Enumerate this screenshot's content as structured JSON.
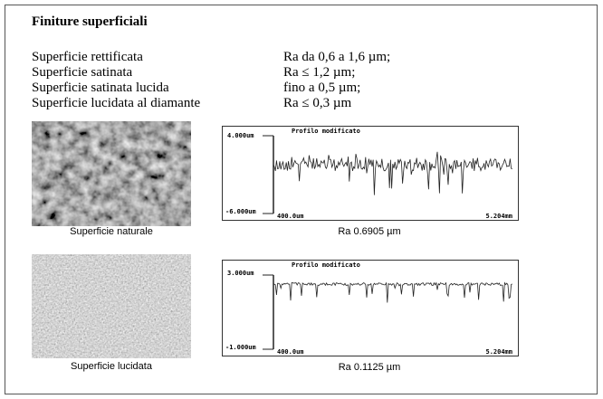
{
  "header": {
    "title": "Finiture superficiali"
  },
  "table": {
    "rows": [
      [
        "Superficie rettificata",
        "Ra da 0,6 a 1,6 µm;"
      ],
      [
        "Superficie satinata",
        "Ra ≤ 1,2 µm;"
      ],
      [
        "Superficie satinata lucida",
        "fino a 0,5 µm;"
      ],
      [
        "Superficie lucidata al diamante",
        "Ra ≤ 0,3 µm"
      ]
    ]
  },
  "panels": [
    {
      "photo_caption": "Superficie naturale",
      "profile_title": "Profilo modificato",
      "y_top": "4.000um",
      "y_bottom": "-6.000um",
      "x_left": "400.0um",
      "x_right": "5.204mm",
      "ra": "Ra 0.6905 µm"
    },
    {
      "photo_caption": "Superficie lucidata",
      "profile_title": "Profilo modificato",
      "y_top": "3.000um",
      "y_bottom": "-1.000um",
      "x_left": "400.0um",
      "x_right": "5.204mm",
      "ra": "Ra 0.1125 µm"
    }
  ]
}
